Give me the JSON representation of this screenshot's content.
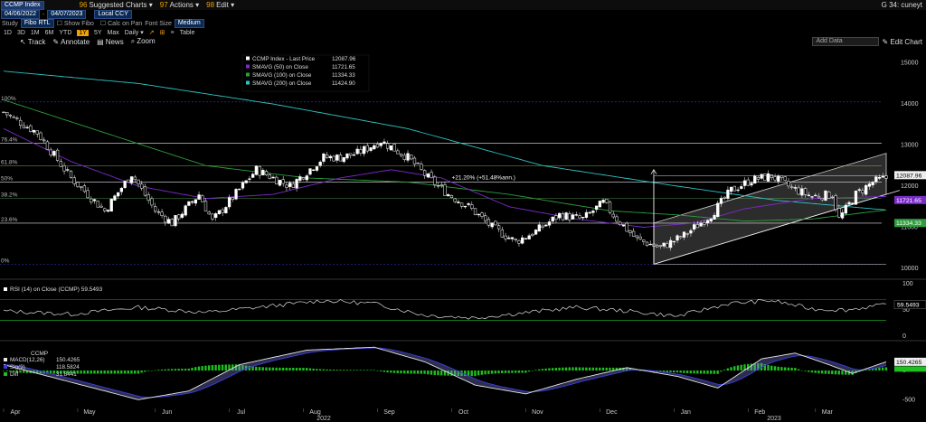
{
  "toolbar": {
    "ticker": "CCMP Index",
    "suggested_charts": "Suggested Charts",
    "actions": "Actions",
    "edit": "Edit",
    "user": "G 34: cuneyt",
    "start_date": "04/06/2022",
    "end_date": "04/07/2023",
    "currency": "Local CCY",
    "study_label": "Study",
    "study_value": "Fibo RTL",
    "show_fibo": "Show Fibo",
    "calc_on_pan": "Calc on Pan",
    "font_size_label": "Font Size",
    "font_size_value": "Medium",
    "periods": [
      "1D",
      "3D",
      "1M",
      "6M",
      "YTD",
      "1Y",
      "5Y",
      "Max"
    ],
    "active_period": "1Y",
    "frequency": "Daily",
    "table_label": "Table",
    "track": "Track",
    "annotate": "Annotate",
    "news": "News",
    "zoom": "Zoom",
    "add_data_placeholder": "Add Data",
    "edit_chart": "Edit Chart"
  },
  "colors": {
    "price": "#ffffff",
    "sma50": "#7a2cc8",
    "sma100": "#2e9e3c",
    "sma200": "#2fc4c4",
    "fib": "#e8e8e8",
    "rsi": "#dddddd",
    "macd": "#e6e6e6",
    "signal": "#3a3ad8",
    "diff": "#1fbf1f",
    "channel": "#8a8a8a"
  },
  "chart_data": [
    {
      "type": "candlestick",
      "legend": [
        {
          "name": "CCMP Index - Last Price",
          "value": "12087.96",
          "color": "#ffffff"
        },
        {
          "name": "SMAVG (50)  on Close",
          "value": "11721.65",
          "color": "#7a2cc8"
        },
        {
          "name": "SMAVG (100)  on Close",
          "value": "11334.33",
          "color": "#2e9e3c"
        },
        {
          "name": "SMAVG (200)  on Close",
          "value": "11424.90",
          "color": "#2fc4c4"
        }
      ],
      "y_ticks": [
        10000,
        11000,
        12000,
        13000,
        14000,
        15000
      ],
      "ylim": [
        9800,
        15300
      ],
      "x_ticks": [
        "Apr",
        "May",
        "Jun",
        "Jul",
        "Aug",
        "Sep",
        "Oct",
        "Nov",
        "Dec",
        "Jan",
        "Feb",
        "Mar"
      ],
      "year_labels": [
        "2022",
        "2023"
      ],
      "fib_levels": [
        {
          "label": "100%",
          "value": 14050
        },
        {
          "label": "76.4%",
          "value": 13050
        },
        {
          "label": "61.8%",
          "value": 12500
        },
        {
          "label": "50%",
          "value": 12100
        },
        {
          "label": "38.2%",
          "value": 11700
        },
        {
          "label": "23.6%",
          "value": 11100
        },
        {
          "label": "0%",
          "value": 10100
        }
      ],
      "last_price": {
        "label": "12087.96",
        "value": 12087.96
      },
      "sma50_last": {
        "label": "11721.65",
        "value": 11721.65
      },
      "sma100_last": {
        "label": "11334.33",
        "value": 11334.33
      },
      "measure_annotation": "+21.20% (+51.48%ann.)",
      "anchors": [
        [
          0,
          13800
        ],
        [
          10,
          13300
        ],
        [
          20,
          12200
        ],
        [
          30,
          11400
        ],
        [
          38,
          12300
        ],
        [
          45,
          11400
        ],
        [
          50,
          11100
        ],
        [
          58,
          11800
        ],
        [
          62,
          11150
        ],
        [
          75,
          12400
        ],
        [
          85,
          12000
        ],
        [
          95,
          12700
        ],
        [
          100,
          12700
        ],
        [
          105,
          12800
        ],
        [
          112,
          13100
        ],
        [
          120,
          12700
        ],
        [
          126,
          12200
        ],
        [
          132,
          11800
        ],
        [
          138,
          11500
        ],
        [
          145,
          11000
        ],
        [
          152,
          10650
        ],
        [
          158,
          10900
        ],
        [
          165,
          11300
        ],
        [
          172,
          11200
        ],
        [
          178,
          11600
        ],
        [
          182,
          11200
        ],
        [
          188,
          10700
        ],
        [
          195,
          10500
        ],
        [
          202,
          10800
        ],
        [
          210,
          11300
        ],
        [
          216,
          11900
        ],
        [
          222,
          12150
        ],
        [
          228,
          12250
        ],
        [
          234,
          11950
        ],
        [
          240,
          11750
        ],
        [
          246,
          11800
        ],
        [
          248,
          11200
        ],
        [
          253,
          11800
        ],
        [
          258,
          12100
        ],
        [
          262,
          12200
        ]
      ],
      "sma50_anchors": [
        [
          0,
          13400
        ],
        [
          20,
          12600
        ],
        [
          40,
          12000
        ],
        [
          60,
          11700
        ],
        [
          80,
          11800
        ],
        [
          100,
          12200
        ],
        [
          115,
          12400
        ],
        [
          130,
          12200
        ],
        [
          150,
          11500
        ],
        [
          170,
          11200
        ],
        [
          190,
          11000
        ],
        [
          205,
          11100
        ],
        [
          220,
          11450
        ],
        [
          240,
          11700
        ],
        [
          262,
          11750
        ]
      ],
      "sma100_anchors": [
        [
          0,
          14100
        ],
        [
          30,
          13300
        ],
        [
          60,
          12500
        ],
        [
          90,
          12200
        ],
        [
          120,
          12100
        ],
        [
          150,
          11800
        ],
        [
          180,
          11400
        ],
        [
          200,
          11300
        ],
        [
          220,
          11150
        ],
        [
          240,
          11200
        ],
        [
          262,
          11420
        ]
      ],
      "sma200_anchors": [
        [
          0,
          14800
        ],
        [
          40,
          14500
        ],
        [
          80,
          14000
        ],
        [
          120,
          13400
        ],
        [
          160,
          12500
        ],
        [
          200,
          12000
        ],
        [
          230,
          11650
        ],
        [
          262,
          11420
        ]
      ],
      "channel": {
        "lower": [
          [
            193,
            10100
          ],
          [
            262,
            11800
          ]
        ],
        "upper": [
          [
            193,
            11100
          ],
          [
            262,
            12800
          ]
        ]
      }
    },
    {
      "type": "line",
      "title": "RSI (14)  on Close (CCMP) 59.5493",
      "last_label": "59.5493",
      "y_ticks": [
        0,
        50,
        100
      ],
      "ylim": [
        0,
        100
      ],
      "bands": [
        30,
        70
      ],
      "anchors": [
        [
          0,
          48
        ],
        [
          20,
          42
        ],
        [
          40,
          55
        ],
        [
          60,
          45
        ],
        [
          80,
          58
        ],
        [
          95,
          68
        ],
        [
          110,
          62
        ],
        [
          125,
          40
        ],
        [
          140,
          35
        ],
        [
          155,
          45
        ],
        [
          170,
          55
        ],
        [
          185,
          48
        ],
        [
          200,
          38
        ],
        [
          215,
          62
        ],
        [
          228,
          68
        ],
        [
          240,
          52
        ],
        [
          250,
          50
        ],
        [
          262,
          60
        ]
      ]
    },
    {
      "type": "line",
      "title": "CCMP",
      "series_labels": [
        {
          "name": "MACD(12,26)",
          "value": "150.4265"
        },
        {
          "name": "Sig(9)",
          "value": "118.5824"
        },
        {
          "name": "Diff",
          "value": "31.8441"
        }
      ],
      "last_label": "150.4265",
      "y_ticks": [
        -500,
        0
      ],
      "ylim": [
        -650,
        450
      ],
      "anchors": [
        [
          0,
          100
        ],
        [
          20,
          -200
        ],
        [
          40,
          -500
        ],
        [
          55,
          -350
        ],
        [
          70,
          100
        ],
        [
          90,
          350
        ],
        [
          110,
          400
        ],
        [
          125,
          150
        ],
        [
          140,
          -250
        ],
        [
          155,
          -400
        ],
        [
          170,
          -150
        ],
        [
          185,
          50
        ],
        [
          200,
          -100
        ],
        [
          212,
          -300
        ],
        [
          225,
          200
        ],
        [
          235,
          300
        ],
        [
          245,
          100
        ],
        [
          252,
          -50
        ],
        [
          262,
          150
        ]
      ]
    }
  ]
}
